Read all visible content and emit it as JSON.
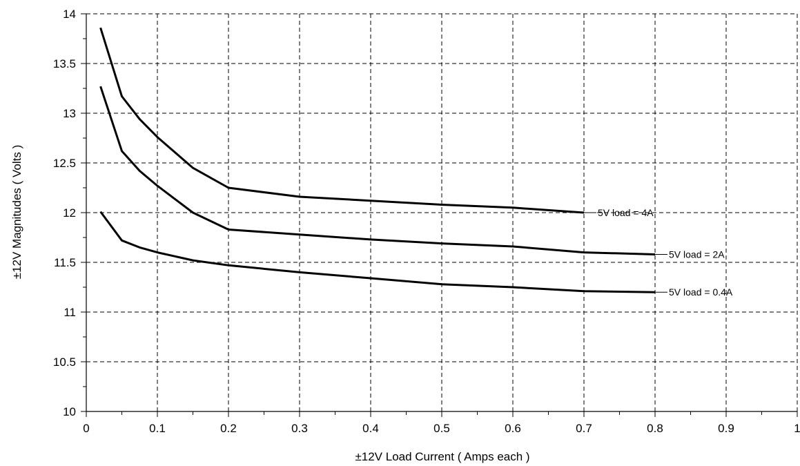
{
  "chart_data": {
    "type": "line",
    "title": "",
    "xlabel": "±12V Load Current ( Amps each )",
    "ylabel": "±12V Magnitudes ( Volts )",
    "xlim": [
      0,
      1
    ],
    "ylim": [
      10,
      14
    ],
    "x_ticks": [
      "0",
      "0.1",
      "0.2",
      "0.3",
      "0.4",
      "0.5",
      "0.6",
      "0.7",
      "0.8",
      "0.9",
      "1"
    ],
    "y_ticks": [
      "10",
      "10.5",
      "11",
      "11.5",
      "12",
      "12.5",
      "13",
      "13.5",
      "14"
    ],
    "grid": true,
    "series": [
      {
        "name": "5V load = 4A",
        "x": [
          0.02,
          0.05,
          0.075,
          0.1,
          0.15,
          0.2,
          0.3,
          0.4,
          0.5,
          0.6,
          0.7
        ],
        "y": [
          13.86,
          13.17,
          12.94,
          12.76,
          12.45,
          12.25,
          12.16,
          12.12,
          12.08,
          12.05,
          12.0
        ]
      },
      {
        "name": "5V load = 2A",
        "x": [
          0.02,
          0.05,
          0.075,
          0.1,
          0.15,
          0.2,
          0.3,
          0.4,
          0.5,
          0.6,
          0.7,
          0.8
        ],
        "y": [
          13.27,
          12.62,
          12.42,
          12.27,
          12.0,
          11.83,
          11.78,
          11.73,
          11.69,
          11.66,
          11.6,
          11.58
        ]
      },
      {
        "name": "5V load = 0.4A",
        "x": [
          0.02,
          0.05,
          0.075,
          0.1,
          0.15,
          0.2,
          0.3,
          0.4,
          0.5,
          0.6,
          0.7,
          0.8
        ],
        "y": [
          12.01,
          11.72,
          11.65,
          11.6,
          11.52,
          11.47,
          11.4,
          11.34,
          11.28,
          11.25,
          11.21,
          11.2
        ]
      }
    ]
  }
}
